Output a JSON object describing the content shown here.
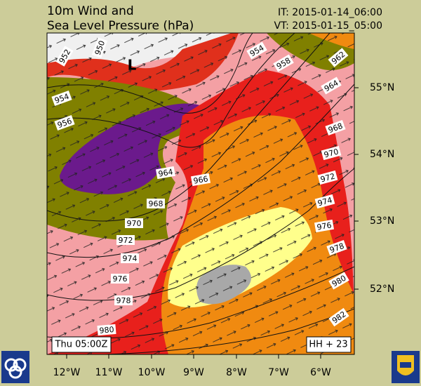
{
  "header": {
    "title": [
      "10m Wind and",
      "Sea Level Pressure (hPa)"
    ],
    "init_time": "IT: 2015-01-14_06:00",
    "valid_time": "VT: 2015-01-15_05:00"
  },
  "map": {
    "low_label": "L",
    "isobar_labels": [
      950,
      952,
      954,
      956,
      954,
      958,
      962,
      964,
      968,
      970,
      972,
      974,
      976,
      978,
      980,
      982,
      964,
      966,
      968,
      970,
      972,
      974,
      976,
      978,
      980
    ],
    "lat_labels": [
      "55°N",
      "54°N",
      "53°N",
      "52°N"
    ],
    "lon_labels": [
      "12°W",
      "11°W",
      "10°W",
      "9°W",
      "8°W",
      "7°W",
      "6°W"
    ]
  },
  "footer": {
    "time": "Thu 05:00Z",
    "lead": "HH + 23"
  }
}
